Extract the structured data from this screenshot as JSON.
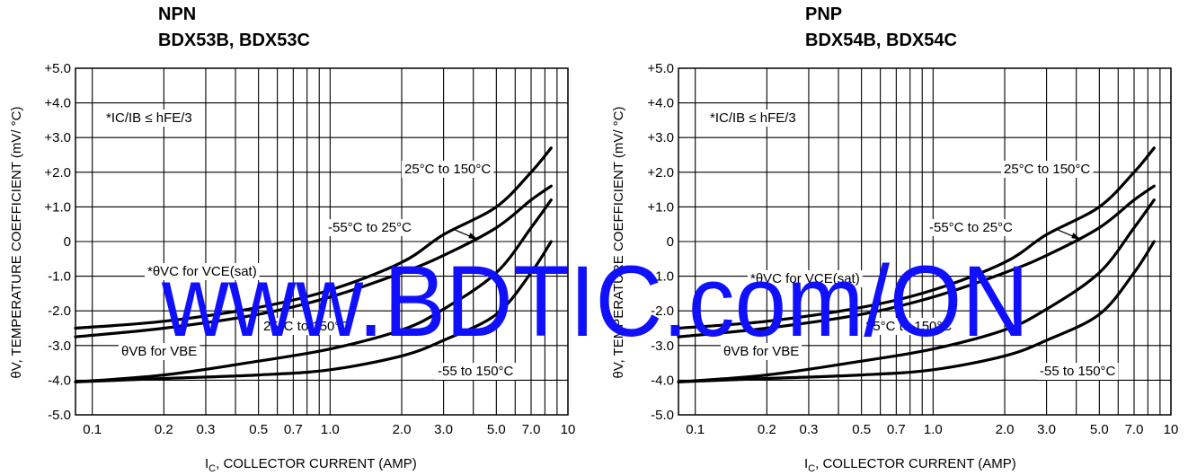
{
  "watermark": "www.BDTIC.com/ON",
  "chart_data": [
    {
      "type": "line",
      "title_line1": "NPN",
      "title_line2": "BDX53B, BDX53C",
      "xlabel_main": "I",
      "xlabel_sub": "C",
      "xlabel_rest": ", COLLECTOR CURRENT (AMP)",
      "ylabel": "θV, TEMPERATURE COEFFICIENT (mV/ °C)",
      "xscale": "log",
      "xlim": [
        0.085,
        10
      ],
      "ylim": [
        -5.0,
        5.0
      ],
      "grid": true,
      "x_ticks": [
        "0.1",
        "0.2",
        "0.3",
        "0.5",
        "0.7",
        "1.0",
        "2.0",
        "3.0",
        "5.0",
        "7.0",
        "10"
      ],
      "y_ticks": [
        "+5.0",
        "+4.0",
        "+3.0",
        "+2.0",
        "+1.0",
        "0",
        "-1.0",
        "-2.0",
        "-3.0",
        "-4.0",
        "-5.0"
      ],
      "condition": "*IC/IB ≤ hFE/3",
      "annotations": [
        "25°C to 150°C",
        "-55°C to 25°C",
        "*θVC for VCE(sat)",
        "25°C to 150°C",
        "θVB for VBE",
        "-55 to 150°C"
      ],
      "series": [
        {
          "x": [
            0.085,
            0.2,
            0.5,
            1.0,
            2.0,
            3.0,
            5.0,
            7.0,
            8.5
          ],
          "y": [
            -2.5,
            -2.3,
            -1.9,
            -1.4,
            -0.6,
            0.2,
            1.0,
            2.0,
            2.7
          ]
        },
        {
          "x": [
            0.085,
            0.2,
            0.5,
            1.0,
            2.0,
            3.0,
            5.0,
            7.0,
            8.5
          ],
          "y": [
            -2.75,
            -2.5,
            -2.1,
            -1.6,
            -0.9,
            -0.4,
            0.4,
            1.2,
            1.6
          ]
        },
        {
          "x": [
            0.085,
            0.2,
            0.5,
            1.0,
            2.0,
            3.0,
            5.0,
            7.0,
            8.5
          ],
          "y": [
            -4.05,
            -3.85,
            -3.45,
            -3.1,
            -2.55,
            -1.95,
            -0.9,
            0.4,
            1.2
          ]
        },
        {
          "x": [
            0.085,
            0.2,
            0.5,
            1.0,
            2.0,
            3.0,
            5.0,
            7.0,
            8.5
          ],
          "y": [
            -4.05,
            -3.95,
            -3.85,
            -3.7,
            -3.3,
            -2.85,
            -2.1,
            -0.9,
            0.0
          ]
        }
      ]
    },
    {
      "type": "line",
      "title_line1": "PNP",
      "title_line2": "BDX54B, BDX54C",
      "xlabel_main": "I",
      "xlabel_sub": "C",
      "xlabel_rest": ", COLLECTOR CURRENT (AMP)",
      "ylabel": "θV, TEMPERATURE COEFFICIENT (mV/ °C)",
      "xscale": "log",
      "xlim": [
        0.085,
        10
      ],
      "ylim": [
        -5.0,
        5.0
      ],
      "grid": true,
      "x_ticks": [
        "0.1",
        "0.2",
        "0.3",
        "0.5",
        "0.7",
        "1.0",
        "2.0",
        "3.0",
        "5.0",
        "7.0",
        "10"
      ],
      "y_ticks": [
        "+5.0",
        "+4.0",
        "+3.0",
        "+2.0",
        "+1.0",
        "0",
        "-1.0",
        "-2.0",
        "-3.0",
        "-4.0",
        "-5.0"
      ],
      "condition": "*IC/IB ≤ hFE/3",
      "annotations": [
        "25°C to 150°C",
        "-55°C to 25°C",
        "*θVC for VCE(sat)",
        "25°C to 150°C",
        "θVB for VBE",
        "-55 to 150°C"
      ],
      "series": [
        {
          "x": [
            0.085,
            0.2,
            0.5,
            1.0,
            2.0,
            3.0,
            5.0,
            7.0,
            8.5
          ],
          "y": [
            -2.5,
            -2.3,
            -1.9,
            -1.4,
            -0.6,
            0.2,
            1.0,
            2.0,
            2.7
          ]
        },
        {
          "x": [
            0.085,
            0.2,
            0.5,
            1.0,
            2.0,
            3.0,
            5.0,
            7.0,
            8.5
          ],
          "y": [
            -2.75,
            -2.5,
            -2.1,
            -1.6,
            -0.9,
            -0.4,
            0.4,
            1.2,
            1.6
          ]
        },
        {
          "x": [
            0.085,
            0.2,
            0.5,
            1.0,
            2.0,
            3.0,
            5.0,
            7.0,
            8.5
          ],
          "y": [
            -4.05,
            -3.85,
            -3.45,
            -3.1,
            -2.55,
            -1.95,
            -0.9,
            0.4,
            1.2
          ]
        },
        {
          "x": [
            0.085,
            0.2,
            0.5,
            1.0,
            2.0,
            3.0,
            5.0,
            7.0,
            8.5
          ],
          "y": [
            -4.05,
            -3.95,
            -3.85,
            -3.7,
            -3.3,
            -2.85,
            -2.1,
            -0.9,
            0.0
          ]
        }
      ]
    }
  ]
}
